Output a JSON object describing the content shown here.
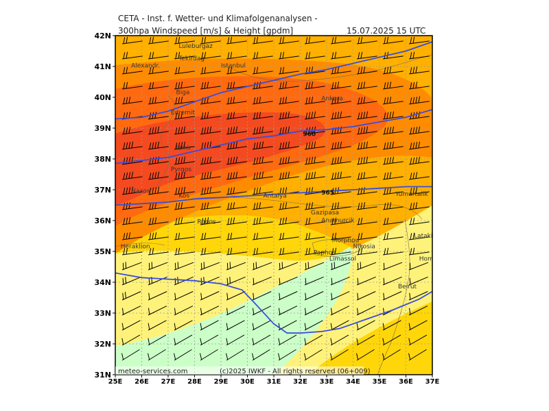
{
  "header": {
    "line1": "CETA - Inst. f. Wetter- und Klimafolgenanalysen -",
    "line2_left": "300hpa Windspeed [m/s] & Height [gpdm]",
    "line2_right": "15.07.2025 15 UTC"
  },
  "axes": {
    "lat_labels": [
      "42N",
      "41N",
      "40N",
      "39N",
      "38N",
      "37N",
      "36N",
      "35N",
      "34N",
      "33N",
      "32N",
      "31N"
    ],
    "lon_labels": [
      "25E",
      "26E",
      "27E",
      "28E",
      "29E",
      "30E",
      "31E",
      "32E",
      "33E",
      "34E",
      "35E",
      "36E",
      "37E"
    ]
  },
  "map": {
    "lon_range": [
      25,
      37
    ],
    "lat_range": [
      31,
      42
    ],
    "shading_colors": {
      "pale_green": "#ccffc8",
      "pale_yellow": "#fff27a",
      "yellow": "#ffd60a",
      "orange_light": "#ffb000",
      "orange": "#ff8c00",
      "orange_dark": "#ff6a10",
      "red_orange": "#f44a20"
    },
    "contour_color": "#3b4ddb"
  },
  "height_contours": [
    {
      "value": "960",
      "points": [
        [
          25,
          39.3
        ],
        [
          26,
          39.35
        ],
        [
          27,
          39.55
        ],
        [
          28,
          39.85
        ],
        [
          29,
          40.15
        ],
        [
          30,
          40.35
        ],
        [
          31,
          40.55
        ],
        [
          32,
          40.75
        ],
        [
          33,
          40.9
        ],
        [
          34,
          41.1
        ],
        [
          35,
          41.3
        ],
        [
          36,
          41.5
        ],
        [
          37,
          41.8
        ]
      ]
    },
    {
      "value": "960",
      "points": [
        [
          25,
          37.85
        ],
        [
          26,
          37.95
        ],
        [
          27,
          38.05
        ],
        [
          28,
          38.25
        ],
        [
          29,
          38.45
        ],
        [
          30,
          38.65
        ],
        [
          31,
          38.75
        ],
        [
          32,
          38.9
        ],
        [
          33,
          38.95
        ],
        [
          34,
          39.05
        ],
        [
          35,
          39.2
        ],
        [
          36,
          39.35
        ],
        [
          37,
          39.6
        ]
      ]
    },
    {
      "value": "965",
      "points": [
        [
          25,
          36.5
        ],
        [
          26,
          36.55
        ],
        [
          27,
          36.6
        ],
        [
          28,
          36.7
        ],
        [
          29,
          36.75
        ],
        [
          30,
          36.8
        ],
        [
          31,
          36.85
        ],
        [
          32,
          36.9
        ],
        [
          33,
          36.95
        ],
        [
          34,
          37
        ],
        [
          35,
          37.05
        ],
        [
          36,
          37.1
        ],
        [
          37,
          37.1
        ]
      ]
    },
    {
      "value": "",
      "points": [
        [
          25,
          34.3
        ],
        [
          26,
          34.15
        ],
        [
          27,
          34.1
        ],
        [
          28,
          34.05
        ],
        [
          29,
          33.95
        ],
        [
          29.8,
          33.75
        ],
        [
          30.3,
          33.3
        ],
        [
          31,
          32.65
        ],
        [
          31.5,
          32.35
        ],
        [
          32,
          32.35
        ],
        [
          32.8,
          32.4
        ],
        [
          33.5,
          32.5
        ],
        [
          34.5,
          32.8
        ],
        [
          35.5,
          33.1
        ],
        [
          36.5,
          33.45
        ],
        [
          37,
          33.7
        ]
      ]
    }
  ],
  "contour_labels": [
    {
      "text": "960",
      "lon": 32.1,
      "lat": 38.75
    },
    {
      "text": "965",
      "lon": 32.8,
      "lat": 36.85
    }
  ],
  "cities": [
    {
      "name": "Luleburgaz",
      "lon": 27.4,
      "lat": 41.6
    },
    {
      "name": "Tekirdag",
      "lon": 27.4,
      "lat": 41.2
    },
    {
      "name": "Istanbul",
      "lon": 29.0,
      "lat": 40.97
    },
    {
      "name": "Alexandr.",
      "lon": 25.6,
      "lat": 40.97
    },
    {
      "name": "Biga",
      "lon": 27.3,
      "lat": 40.1
    },
    {
      "name": "Edremit",
      "lon": 27.1,
      "lat": 39.45
    },
    {
      "name": "Ankara",
      "lon": 32.8,
      "lat": 39.9
    },
    {
      "name": "Izmir",
      "lon": 27.3,
      "lat": 38.3
    },
    {
      "name": "Pyrgos",
      "lon": 27.1,
      "lat": 37.6
    },
    {
      "name": "Naxos",
      "lon": 25.6,
      "lat": 36.9
    },
    {
      "name": "Kos",
      "lon": 27.4,
      "lat": 36.75
    },
    {
      "name": "Antalya",
      "lon": 30.6,
      "lat": 36.75
    },
    {
      "name": "Yumurtalik",
      "lon": 35.6,
      "lat": 36.8
    },
    {
      "name": "Gazipasa",
      "lon": 32.4,
      "lat": 36.2
    },
    {
      "name": "Anamurcik",
      "lon": 32.8,
      "lat": 35.95
    },
    {
      "name": "Rodos",
      "lon": 28.1,
      "lat": 35.9
    },
    {
      "name": "Latakia",
      "lon": 36.3,
      "lat": 35.45
    },
    {
      "name": "Heraklion",
      "lon": 25.2,
      "lat": 35.1
    },
    {
      "name": "Morphou",
      "lon": 33.2,
      "lat": 35.3
    },
    {
      "name": "Nikosia",
      "lon": 34.0,
      "lat": 35.1
    },
    {
      "name": "Paphos",
      "lon": 32.5,
      "lat": 34.9
    },
    {
      "name": "Limassol",
      "lon": 33.1,
      "lat": 34.7
    },
    {
      "name": "Homs",
      "lon": 36.5,
      "lat": 34.7
    },
    {
      "name": "Beirut",
      "lon": 35.7,
      "lat": 33.8
    }
  ],
  "footer": {
    "left": "meteo-services.com",
    "right": "(c)2025 IWKF - All rights reserved (06+009)"
  }
}
